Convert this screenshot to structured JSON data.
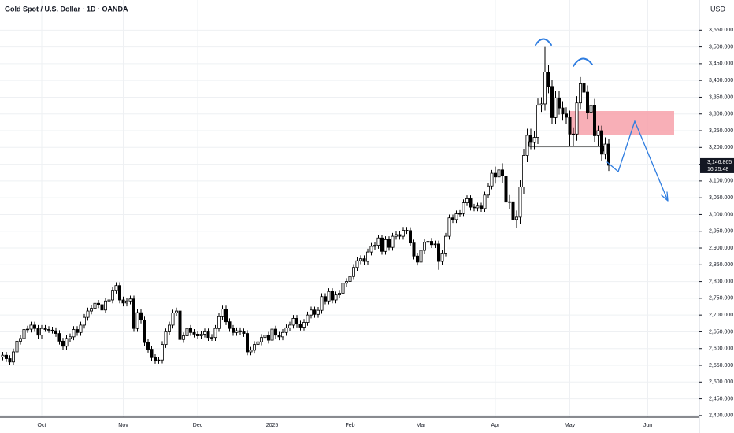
{
  "chart_data": {
    "type": "candlestick",
    "title": "Gold Spot / U.S. Dollar · 1D · OANDA",
    "currency": "USD",
    "last_value_label": "3,146.865",
    "countdown": "16:25:48",
    "up_color": "#ffffff",
    "down_color": "#000000",
    "wick_color": "#000000",
    "grid": true,
    "ylim": [
      2395,
      3640
    ],
    "yticks": [
      {
        "value": 2400,
        "label": "2,400.000"
      },
      {
        "value": 2450,
        "label": "2,450.000"
      },
      {
        "value": 2500,
        "label": "2,500.000"
      },
      {
        "value": 2550,
        "label": "2,550.000"
      },
      {
        "value": 2600,
        "label": "2,600.000"
      },
      {
        "value": 2650,
        "label": "2,650.000"
      },
      {
        "value": 2700,
        "label": "2,700.000"
      },
      {
        "value": 2750,
        "label": "2,750.000"
      },
      {
        "value": 2800,
        "label": "2,800.000"
      },
      {
        "value": 2850,
        "label": "2,850.000"
      },
      {
        "value": 2900,
        "label": "2,900.000"
      },
      {
        "value": 2950,
        "label": "2,950.000"
      },
      {
        "value": 3000,
        "label": "3,000.000"
      },
      {
        "value": 3050,
        "label": "3,050.000"
      },
      {
        "value": 3100,
        "label": "3,100.000"
      },
      {
        "value": 3150,
        "label": "3,150.000"
      },
      {
        "value": 3200,
        "label": "3,200.000"
      },
      {
        "value": 3250,
        "label": "3,250.000"
      },
      {
        "value": 3300,
        "label": "3,300.000"
      },
      {
        "value": 3350,
        "label": "3,350.000"
      },
      {
        "value": 3400,
        "label": "3,400.000"
      },
      {
        "value": 3450,
        "label": "3,450.000"
      },
      {
        "value": 3500,
        "label": "3,500.000"
      },
      {
        "value": 3550,
        "label": "3,550.000"
      }
    ],
    "categories": [
      null,
      null,
      null,
      null,
      null,
      null,
      null,
      null,
      null,
      null,
      null,
      "Oct",
      null,
      null,
      null,
      null,
      null,
      null,
      null,
      null,
      null,
      null,
      null,
      null,
      null,
      null,
      null,
      null,
      null,
      null,
      null,
      null,
      null,
      null,
      "Nov",
      null,
      null,
      null,
      null,
      null,
      null,
      null,
      null,
      null,
      null,
      null,
      null,
      null,
      null,
      null,
      null,
      null,
      null,
      null,
      null,
      "Dec",
      null,
      null,
      null,
      null,
      null,
      null,
      null,
      null,
      null,
      null,
      null,
      null,
      null,
      null,
      null,
      null,
      null,
      null,
      null,
      null,
      "2025",
      null,
      null,
      null,
      null,
      null,
      null,
      null,
      null,
      null,
      null,
      null,
      null,
      null,
      null,
      null,
      null,
      null,
      null,
      null,
      null,
      null,
      "Feb",
      null,
      null,
      null,
      null,
      null,
      null,
      null,
      null,
      null,
      null,
      null,
      null,
      null,
      null,
      null,
      null,
      null,
      null,
      null,
      "Mar",
      null,
      null,
      null,
      null,
      null,
      null,
      null,
      null,
      null,
      null,
      null,
      null,
      null,
      null,
      null,
      null,
      null,
      null,
      null,
      null,
      "Apr",
      null,
      null,
      null,
      null,
      null,
      null,
      null,
      null,
      null,
      null,
      null,
      null,
      null,
      null,
      null,
      null,
      null,
      null,
      null,
      null,
      "May",
      null,
      null,
      null,
      null,
      null,
      null,
      null,
      null,
      null,
      null,
      null,
      null,
      null,
      null,
      null,
      null,
      null,
      null,
      null,
      null,
      null,
      "Jun",
      null,
      null,
      null,
      null,
      null,
      null,
      null,
      null,
      null
    ],
    "open": [
      2575,
      2580,
      2570,
      2560,
      2590,
      2622,
      2630,
      2657,
      2658,
      2670,
      2660,
      2640,
      2660,
      2657,
      2655,
      2653,
      2645,
      2622,
      2607,
      2630,
      2635,
      2657,
      2648,
      2670,
      2693,
      2712,
      2720,
      2735,
      2731,
      2715,
      2742,
      2745,
      2774,
      2788,
      2745,
      2736,
      2742,
      2748,
      2660,
      2707,
      2685,
      2618,
      2598,
      2573,
      2565,
      2566,
      2612,
      2650,
      2670,
      2706,
      2712,
      2627,
      2638,
      2660,
      2648,
      2643,
      2638,
      2643,
      2650,
      2633,
      2633,
      2660,
      2695,
      2718,
      2680,
      2660,
      2648,
      2653,
      2650,
      2645,
      2590,
      2595,
      2612,
      2620,
      2633,
      2640,
      2625,
      2658,
      2640,
      2635,
      2648,
      2662,
      2670,
      2690,
      2673,
      2664,
      2678,
      2700,
      2715,
      2702,
      2714,
      2755,
      2742,
      2770,
      2745,
      2760,
      2765,
      2795,
      2800,
      2815,
      2842,
      2862,
      2868,
      2860,
      2888,
      2905,
      2908,
      2930,
      2890,
      2925,
      2902,
      2935,
      2940,
      2935,
      2953,
      2952,
      2915,
      2876,
      2858,
      2893,
      2917,
      2920,
      2910,
      2912,
      2860,
      2885,
      2935,
      2990,
      2985,
      3002,
      3003,
      3035,
      3047,
      3022,
      3020,
      3025,
      3018,
      3058,
      3085,
      3123,
      3112,
      3133,
      3115,
      3037,
      3038,
      2985,
      2992,
      3082,
      3176,
      3236,
      3215,
      3230,
      3326,
      3330,
      3425,
      3382,
      3289,
      3348,
      3318,
      3300,
      3290,
      3240,
      3240,
      3333,
      3390,
      3365,
      3305,
      3325,
      3235,
      3250,
      3180,
      3210,
      null,
      null,
      null,
      null,
      null,
      null,
      null,
      null,
      null,
      null,
      null,
      null,
      null,
      null,
      null,
      null,
      null,
      null,
      null,
      null
    ],
    "high": [
      2590,
      2590,
      2580,
      2600,
      2632,
      2640,
      2667,
      2668,
      2680,
      2680,
      2670,
      2670,
      2670,
      2667,
      2665,
      2663,
      2655,
      2632,
      2640,
      2645,
      2667,
      2667,
      2680,
      2703,
      2722,
      2730,
      2745,
      2745,
      2741,
      2752,
      2755,
      2784,
      2798,
      2798,
      2755,
      2752,
      2758,
      2758,
      2717,
      2717,
      2695,
      2628,
      2608,
      2583,
      2576,
      2622,
      2660,
      2680,
      2716,
      2722,
      2722,
      2648,
      2670,
      2670,
      2658,
      2653,
      2653,
      2660,
      2660,
      2643,
      2670,
      2705,
      2728,
      2728,
      2690,
      2670,
      2663,
      2663,
      2660,
      2655,
      2605,
      2622,
      2630,
      2643,
      2650,
      2650,
      2668,
      2668,
      2650,
      2658,
      2672,
      2680,
      2700,
      2700,
      2683,
      2688,
      2710,
      2725,
      2725,
      2724,
      2765,
      2765,
      2780,
      2780,
      2770,
      2775,
      2805,
      2810,
      2825,
      2852,
      2872,
      2878,
      2878,
      2898,
      2915,
      2918,
      2940,
      2940,
      2935,
      2935,
      2945,
      2950,
      2950,
      2963,
      2963,
      2962,
      2925,
      2886,
      2903,
      2927,
      2930,
      2930,
      2922,
      2922,
      2895,
      2945,
      3000,
      3000,
      3012,
      3013,
      3045,
      3057,
      3057,
      3032,
      3035,
      3035,
      3068,
      3095,
      3133,
      3143,
      3153,
      3153,
      3135,
      3058,
      3058,
      3012,
      3102,
      3196,
      3256,
      3256,
      3250,
      3346,
      3350,
      3500,
      3445,
      3402,
      3368,
      3368,
      3338,
      3320,
      3310,
      3260,
      3353,
      3410,
      3435,
      3385,
      3345,
      3345,
      3265,
      3265,
      3230,
      3225,
      null,
      null,
      null,
      null,
      null,
      null,
      null,
      null,
      null,
      null,
      null,
      null,
      null,
      null,
      null,
      null,
      null,
      null,
      null,
      null
    ],
    "low": [
      2565,
      2560,
      2550,
      2550,
      2580,
      2612,
      2620,
      2647,
      2648,
      2650,
      2630,
      2630,
      2650,
      2647,
      2645,
      2635,
      2612,
      2597,
      2597,
      2620,
      2625,
      2638,
      2638,
      2660,
      2683,
      2702,
      2710,
      2721,
      2705,
      2705,
      2732,
      2735,
      2764,
      2735,
      2726,
      2726,
      2732,
      2650,
      2650,
      2675,
      2608,
      2588,
      2563,
      2555,
      2555,
      2556,
      2602,
      2640,
      2660,
      2696,
      2617,
      2617,
      2628,
      2638,
      2633,
      2628,
      2628,
      2633,
      2623,
      2623,
      2623,
      2650,
      2685,
      2670,
      2650,
      2638,
      2638,
      2640,
      2635,
      2580,
      2580,
      2585,
      2602,
      2610,
      2623,
      2615,
      2615,
      2630,
      2625,
      2625,
      2638,
      2652,
      2660,
      2663,
      2654,
      2654,
      2668,
      2690,
      2692,
      2692,
      2704,
      2732,
      2732,
      2735,
      2735,
      2750,
      2755,
      2785,
      2790,
      2805,
      2832,
      2852,
      2850,
      2850,
      2878,
      2895,
      2898,
      2880,
      2880,
      2892,
      2892,
      2925,
      2925,
      2925,
      2942,
      2905,
      2866,
      2848,
      2848,
      2883,
      2907,
      2900,
      2900,
      2835,
      2850,
      2875,
      2925,
      2975,
      2975,
      2992,
      2993,
      3025,
      3012,
      3010,
      3010,
      3008,
      3008,
      3048,
      3075,
      3092,
      3092,
      3095,
      3017,
      3017,
      2965,
      2960,
      2972,
      3062,
      3156,
      3195,
      3195,
      3210,
      3306,
      3310,
      3362,
      3269,
      3269,
      3298,
      3280,
      3270,
      3203,
      3205,
      3220,
      3313,
      3345,
      3285,
      3285,
      3215,
      3205,
      3160,
      3165,
      3130,
      null,
      null,
      null,
      null,
      null,
      null,
      null,
      null,
      null,
      null,
      null,
      null,
      null,
      null,
      null,
      null,
      null,
      null,
      null,
      null
    ],
    "close": [
      2580,
      2570,
      2560,
      2590,
      2622,
      2630,
      2657,
      2658,
      2670,
      2660,
      2640,
      2660,
      2657,
      2655,
      2653,
      2645,
      2622,
      2607,
      2630,
      2635,
      2657,
      2648,
      2670,
      2693,
      2712,
      2720,
      2735,
      2731,
      2715,
      2742,
      2745,
      2774,
      2788,
      2745,
      2736,
      2742,
      2748,
      2660,
      2707,
      2685,
      2618,
      2598,
      2573,
      2565,
      2566,
      2612,
      2650,
      2670,
      2706,
      2712,
      2627,
      2638,
      2660,
      2648,
      2643,
      2638,
      2643,
      2650,
      2633,
      2633,
      2660,
      2695,
      2718,
      2680,
      2660,
      2648,
      2653,
      2650,
      2645,
      2590,
      2595,
      2612,
      2620,
      2633,
      2640,
      2625,
      2658,
      2640,
      2635,
      2648,
      2662,
      2670,
      2690,
      2673,
      2664,
      2678,
      2700,
      2715,
      2702,
      2714,
      2755,
      2742,
      2770,
      2745,
      2760,
      2765,
      2795,
      2800,
      2815,
      2842,
      2862,
      2868,
      2860,
      2888,
      2905,
      2908,
      2930,
      2890,
      2925,
      2902,
      2935,
      2940,
      2935,
      2953,
      2952,
      2915,
      2876,
      2858,
      2893,
      2917,
      2920,
      2910,
      2912,
      2860,
      2885,
      2935,
      2990,
      2985,
      3002,
      3003,
      3035,
      3047,
      3022,
      3020,
      3025,
      3018,
      3058,
      3085,
      3123,
      3112,
      3133,
      3115,
      3037,
      3038,
      2985,
      2992,
      3082,
      3176,
      3236,
      3215,
      3230,
      3326,
      3330,
      3425,
      3382,
      3289,
      3348,
      3318,
      3300,
      3290,
      3240,
      3240,
      3333,
      3390,
      3365,
      3305,
      3325,
      3235,
      3250,
      3180,
      3210,
      3146.865,
      null,
      null,
      null,
      null,
      null,
      null,
      null,
      null,
      null,
      null,
      null,
      null,
      null,
      null,
      null,
      null,
      null,
      null,
      null,
      null
    ]
  }
}
